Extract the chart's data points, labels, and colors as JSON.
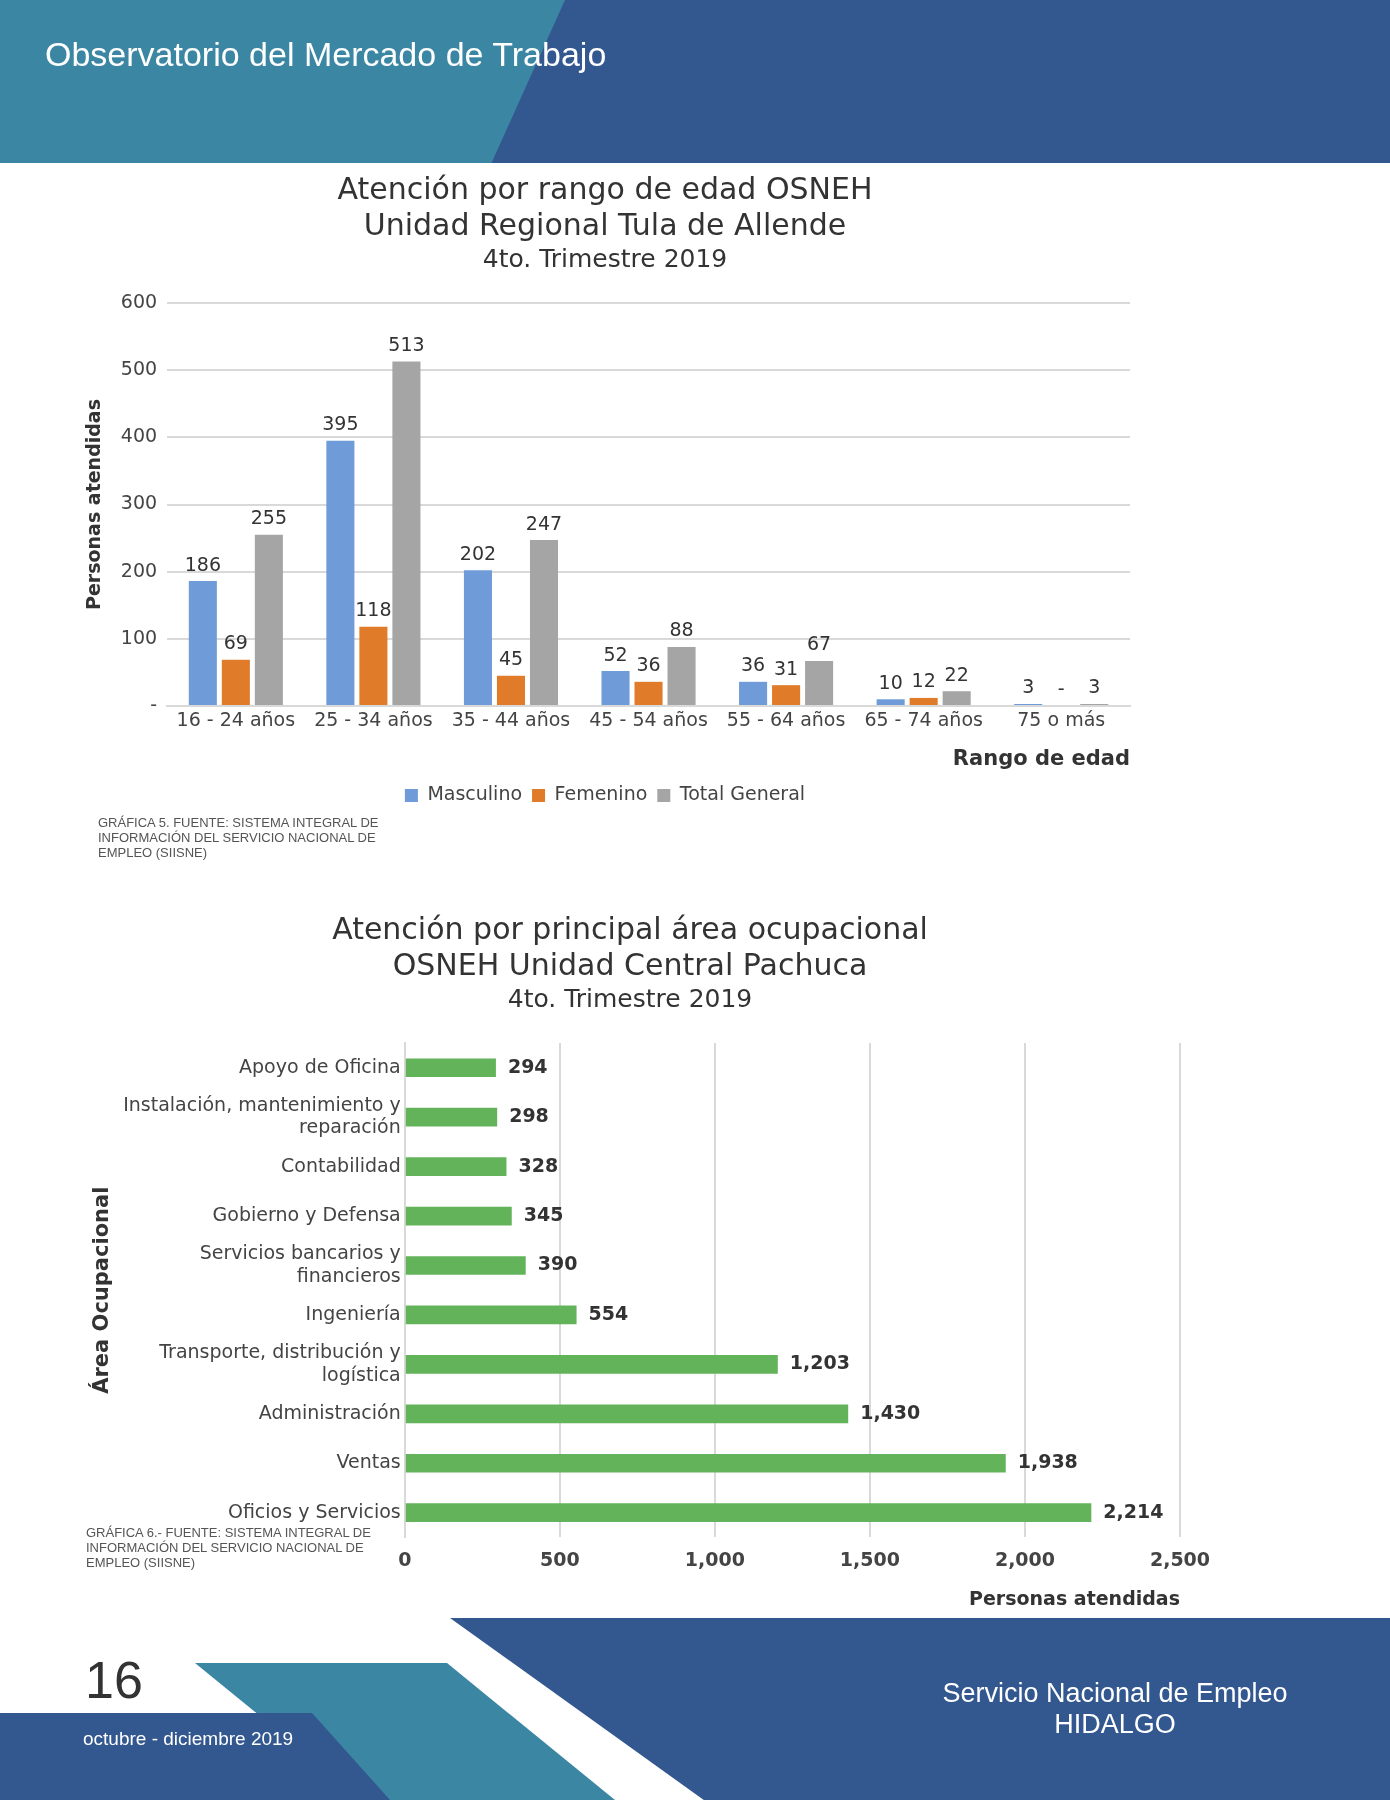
{
  "chart_data": [
    {
      "type": "bar",
      "title": "Atención por rango de edad OSNEH\nUnidad Regional Tula de Allende",
      "subtitle": "4to. Trimestre 2019",
      "xlabel": "Rango de edad",
      "ylabel": "Personas atendidas",
      "categories": [
        "16 - 24 años",
        "25 - 34 años",
        "35 - 44 años",
        "45 - 54 años",
        "55 - 64 años",
        "65 - 74 años",
        "75 o más"
      ],
      "series": [
        {
          "name": "Masculino",
          "color": "#6f9bd8",
          "values": [
            186,
            395,
            202,
            52,
            36,
            10,
            3
          ],
          "value_labels": [
            "186",
            "395",
            "202",
            "52",
            "36",
            "10",
            "3"
          ]
        },
        {
          "name": "Femenino",
          "color": "#e07b2a",
          "values": [
            69,
            118,
            45,
            36,
            31,
            12,
            0
          ],
          "value_labels": [
            "69",
            "118",
            "45",
            "36",
            "31",
            "12",
            "-"
          ]
        },
        {
          "name": "Total General",
          "color": "#a5a5a5",
          "values": [
            255,
            513,
            247,
            88,
            67,
            22,
            3
          ],
          "value_labels": [
            "255",
            "513",
            "247",
            "88",
            "67",
            "22",
            "3"
          ]
        }
      ],
      "ylim": [
        0,
        600
      ],
      "yticks": [
        {
          "value": 0,
          "label": "-"
        },
        100,
        200,
        300,
        400,
        500,
        600
      ],
      "grid": "y",
      "legend": "bottom",
      "annotations": [
        "Observatorio del Mercado de Trabajo",
        "GRÁFICA 5. FUENTE: SISTEMA INTEGRAL DE INFORMACIÓN DEL SERVICIO NACIONAL DE EMPLEO (SIISNE)"
      ]
    },
    {
      "type": "bar",
      "orientation": "horizontal",
      "title": "Atención por principal área ocupacional\nOSNEH Unidad Central Pachuca",
      "subtitle": "4to. Trimestre 2019",
      "xlabel": "Personas atendidas",
      "ylabel": "Área Ocupacional",
      "categories": [
        "Apoyo de Oficina",
        "Instalación, mantenimiento y reparación",
        "Contabilidad",
        "Gobierno y Defensa",
        "Servicios bancarios y financieros",
        "Ingeniería",
        "Transporte, distribución y logística",
        "Administración",
        "Ventas",
        "Oficios y Servicios"
      ],
      "values": [
        294,
        298,
        328,
        345,
        390,
        554,
        1203,
        1430,
        1938,
        2214
      ],
      "color": "#63b35a",
      "value_labels": [
        "294",
        "298",
        "328",
        "345",
        "390",
        "554",
        "1,203",
        "1,430",
        "1,938",
        "2,214"
      ],
      "xlim": [
        0,
        2500
      ],
      "xticks": [
        0,
        500,
        {
          "value": 1000,
          "label": "1,000"
        },
        {
          "value": 1500,
          "label": "1,500"
        },
        {
          "value": 2000,
          "label": "2,000"
        },
        {
          "value": 2500,
          "label": "2,500"
        }
      ],
      "grid": "x",
      "annotations": [
        "GRÁFICA 6.- FUENTE: SISTEMA INTEGRAL DE INFORMACIÓN DEL SERVICIO NACIONAL DE EMPLEO (SIISNE)",
        "16",
        "octubre - diciembre 2019",
        "Servicio Nacional de Empleo\nHIDALGO"
      ]
    }
  ]
}
